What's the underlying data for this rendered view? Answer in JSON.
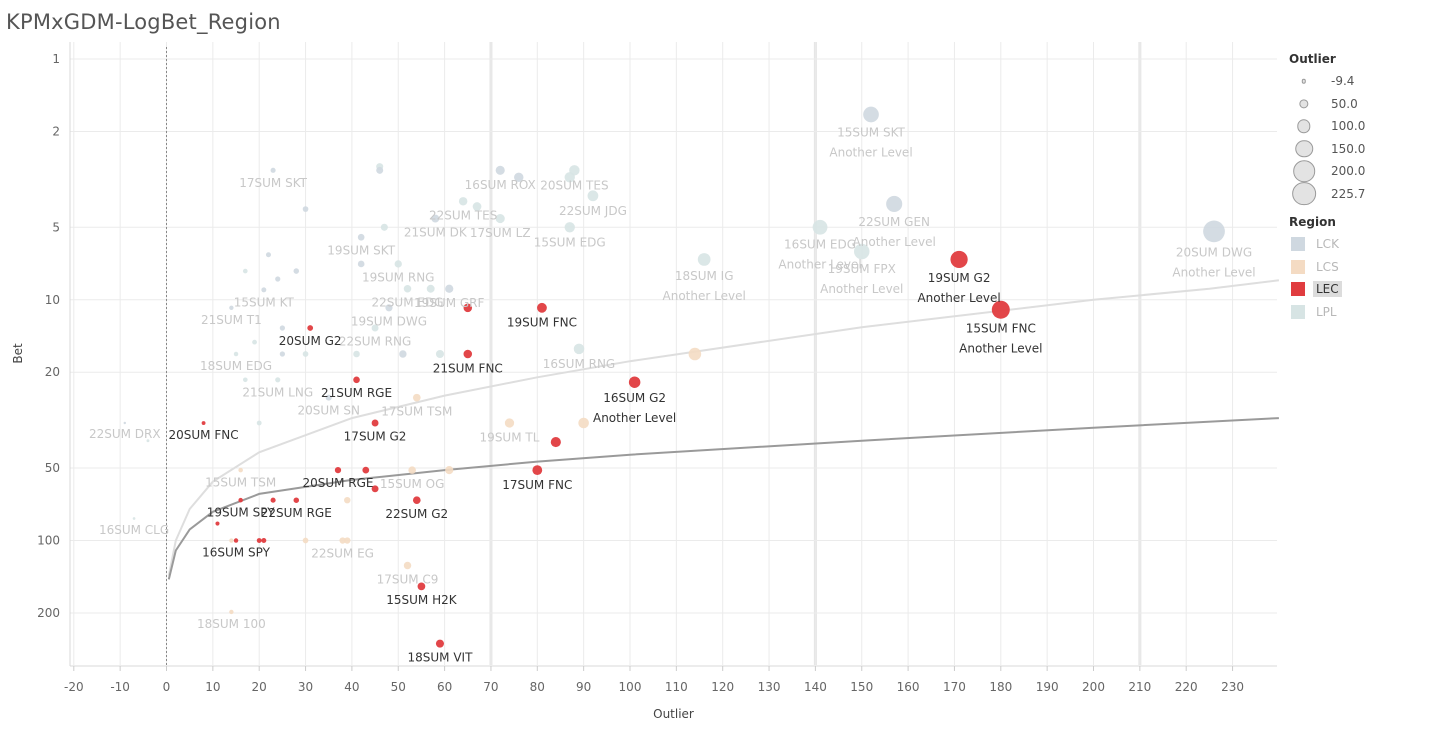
{
  "title": "KPMxGDM-LogBet_Region",
  "colors": {
    "LCK": "#cfd8e0",
    "LCS": "#f4dbc3",
    "LEC": "#e03c3f",
    "LPL": "#d7e4e4",
    "grid": "#ebebeb",
    "axis": "#666666",
    "fitLight": "#dedede",
    "fitDark": "#9a9a9a"
  },
  "legend": {
    "size_title": "Outlier",
    "size_items": [
      {
        "label": "-9.4",
        "value": -9.4
      },
      {
        "label": "50.0",
        "value": 50
      },
      {
        "label": "100.0",
        "value": 100
      },
      {
        "label": "150.0",
        "value": 150
      },
      {
        "label": "200.0",
        "value": 200
      },
      {
        "label": "225.7",
        "value": 225.7
      }
    ],
    "color_title": "Region",
    "color_items": [
      {
        "label": "LCK",
        "key": "LCK",
        "active": false
      },
      {
        "label": "LCS",
        "key": "LCS",
        "active": false
      },
      {
        "label": "LEC",
        "key": "LEC",
        "active": true
      },
      {
        "label": "LPL",
        "key": "LPL",
        "active": false
      }
    ]
  },
  "chart_data": {
    "type": "scatter",
    "title": "KPMxGDM-LogBet_Region",
    "xlabel": "Outlier",
    "ylabel": "Bet",
    "xlim": [
      -22,
      240
    ],
    "ylim": [
      1,
      350
    ],
    "yscale": "log",
    "y_reversed": true,
    "xticks": [
      -20,
      -10,
      0,
      10,
      20,
      30,
      40,
      50,
      60,
      70,
      80,
      90,
      100,
      110,
      120,
      130,
      140,
      150,
      160,
      170,
      180,
      190,
      200,
      210,
      220,
      230
    ],
    "yticks": [
      1,
      2,
      5,
      10,
      20,
      50,
      100,
      200
    ],
    "highlighted_region": "LEC",
    "fit_lines": [
      {
        "name": "trend-all",
        "color": "light",
        "points": [
          [
            0.5,
            140
          ],
          [
            2,
            100
          ],
          [
            5,
            74
          ],
          [
            10,
            57
          ],
          [
            20,
            43
          ],
          [
            40,
            31
          ],
          [
            60,
            25
          ],
          [
            80,
            21
          ],
          [
            100,
            18
          ],
          [
            150,
            13
          ],
          [
            200,
            10
          ],
          [
            225,
            9
          ],
          [
            240,
            8.3
          ]
        ]
      },
      {
        "name": "trend-lec",
        "color": "dark",
        "points": [
          [
            0.5,
            145
          ],
          [
            2,
            110
          ],
          [
            5,
            90
          ],
          [
            10,
            76
          ],
          [
            20,
            64
          ],
          [
            40,
            56
          ],
          [
            60,
            51
          ],
          [
            80,
            47
          ],
          [
            100,
            44
          ],
          [
            150,
            38.5
          ],
          [
            200,
            34
          ],
          [
            240,
            31
          ]
        ]
      }
    ],
    "points": [
      {
        "x": 152,
        "y": 1.7,
        "region": "LCK",
        "label": "15SUM SKT",
        "label2": "Another Level"
      },
      {
        "x": 157,
        "y": 4.0,
        "region": "LCK",
        "label": "22SUM GEN",
        "label2": "Another Level"
      },
      {
        "x": 141,
        "y": 5.0,
        "region": "LPL",
        "label": "16SUM EDG",
        "label2": "Another Level"
      },
      {
        "x": 226,
        "y": 5.2,
        "region": "LCK",
        "label": "20SUM DWG",
        "label2": "Another Level"
      },
      {
        "x": 150,
        "y": 6.3,
        "region": "LPL",
        "label": "19SUM FPX",
        "label2": "Another Level"
      },
      {
        "x": 171,
        "y": 6.8,
        "region": "LEC",
        "label": "19SUM G2",
        "label2": "Another Level"
      },
      {
        "x": 116,
        "y": 6.8,
        "region": "LPL",
        "label": "18SUM IG",
        "label2": "Another Level"
      },
      {
        "x": 180,
        "y": 11,
        "region": "LEC",
        "label": "15SUM FNC",
        "label2": "Another Level"
      },
      {
        "x": 101,
        "y": 22,
        "region": "LEC",
        "label": "16SUM G2",
        "label2": "Another Level"
      },
      {
        "x": 72,
        "y": 2.9,
        "region": "LCK",
        "label": "16SUM ROX",
        "label2": ""
      },
      {
        "x": 76,
        "y": 3.1,
        "region": "LCK",
        "label": "",
        "label2": ""
      },
      {
        "x": 88,
        "y": 2.9,
        "region": "LPL",
        "label": "20SUM TES",
        "label2": ""
      },
      {
        "x": 87,
        "y": 3.1,
        "region": "LPL",
        "label": "",
        "label2": ""
      },
      {
        "x": 23,
        "y": 2.9,
        "region": "LCK",
        "label": "17SUM SKT",
        "label2": ""
      },
      {
        "x": 46,
        "y": 2.8,
        "region": "LPL",
        "label": "",
        "label2": ""
      },
      {
        "x": 46,
        "y": 2.9,
        "region": "LCK",
        "label": "",
        "label2": ""
      },
      {
        "x": 64,
        "y": 3.9,
        "region": "LPL",
        "label": "22SUM TES",
        "label2": ""
      },
      {
        "x": 67,
        "y": 4.1,
        "region": "LPL",
        "label": "",
        "label2": ""
      },
      {
        "x": 92,
        "y": 3.7,
        "region": "LPL",
        "label": "22SUM JDG",
        "label2": ""
      },
      {
        "x": 72,
        "y": 4.6,
        "region": "LPL",
        "label": "17SUM LZ",
        "label2": ""
      },
      {
        "x": 58,
        "y": 4.6,
        "region": "LCK",
        "label": "21SUM DK",
        "label2": ""
      },
      {
        "x": 30,
        "y": 4.2,
        "region": "LCK",
        "label": "",
        "label2": ""
      },
      {
        "x": 47,
        "y": 5.0,
        "region": "LPL",
        "label": "",
        "label2": ""
      },
      {
        "x": 42,
        "y": 5.5,
        "region": "LCK",
        "label": "19SUM SKT",
        "label2": ""
      },
      {
        "x": 87,
        "y": 5.0,
        "region": "LPL",
        "label": "15SUM EDG",
        "label2": ""
      },
      {
        "x": 22,
        "y": 6.5,
        "region": "LCK",
        "label": "",
        "label2": ""
      },
      {
        "x": 42,
        "y": 7.1,
        "region": "LCK",
        "label": "",
        "label2": ""
      },
      {
        "x": 50,
        "y": 7.1,
        "region": "LPL",
        "label": "19SUM RNG",
        "label2": ""
      },
      {
        "x": 17,
        "y": 7.6,
        "region": "LPL",
        "label": "",
        "label2": ""
      },
      {
        "x": 28,
        "y": 7.6,
        "region": "LCK",
        "label": "",
        "label2": ""
      },
      {
        "x": 24,
        "y": 8.2,
        "region": "LCK",
        "label": "",
        "label2": ""
      },
      {
        "x": 21,
        "y": 9.1,
        "region": "LCK",
        "label": "15SUM KT",
        "label2": ""
      },
      {
        "x": 52,
        "y": 9.0,
        "region": "LPL",
        "label": "22SUM EDG",
        "label2": ""
      },
      {
        "x": 57,
        "y": 9.0,
        "region": "LPL",
        "label": "",
        "label2": ""
      },
      {
        "x": 61,
        "y": 9.0,
        "region": "LCK",
        "label": "19SUM GRF",
        "label2": ""
      },
      {
        "x": 14,
        "y": 10.8,
        "region": "LCK",
        "label": "21SUM T1",
        "label2": ""
      },
      {
        "x": 48,
        "y": 10.8,
        "region": "LCK",
        "label": "19SUM DWG",
        "label2": ""
      },
      {
        "x": 65,
        "y": 10.8,
        "region": "LEC",
        "label": "",
        "label2": ""
      },
      {
        "x": 81,
        "y": 10.8,
        "region": "LEC",
        "label": "19SUM FNC",
        "label2": ""
      },
      {
        "x": 25,
        "y": 13.1,
        "region": "LCK",
        "label": "",
        "label2": ""
      },
      {
        "x": 31,
        "y": 13.1,
        "region": "LEC",
        "label": "20SUM G2",
        "label2": ""
      },
      {
        "x": 45,
        "y": 13.1,
        "region": "LPL",
        "label": "22SUM RNG",
        "label2": ""
      },
      {
        "x": 19,
        "y": 15.0,
        "region": "LPL",
        "label": "",
        "label2": ""
      },
      {
        "x": 89,
        "y": 16.0,
        "region": "LPL",
        "label": "16SUM RNG",
        "label2": ""
      },
      {
        "x": 15,
        "y": 16.8,
        "region": "LPL",
        "label": "18SUM EDG",
        "label2": ""
      },
      {
        "x": 25,
        "y": 16.8,
        "region": "LCK",
        "label": "",
        "label2": ""
      },
      {
        "x": 30,
        "y": 16.8,
        "region": "LPL",
        "label": "",
        "label2": ""
      },
      {
        "x": 41,
        "y": 16.8,
        "region": "LPL",
        "label": "",
        "label2": ""
      },
      {
        "x": 51,
        "y": 16.8,
        "region": "LCK",
        "label": "",
        "label2": ""
      },
      {
        "x": 59,
        "y": 16.8,
        "region": "LPL",
        "label": "",
        "label2": ""
      },
      {
        "x": 65,
        "y": 16.8,
        "region": "LEC",
        "label": "21SUM FNC",
        "label2": ""
      },
      {
        "x": 114,
        "y": 16.8,
        "region": "LCS",
        "label": "",
        "label2": ""
      },
      {
        "x": 17,
        "y": 21.5,
        "region": "LPL",
        "label": "",
        "label2": ""
      },
      {
        "x": 24,
        "y": 21.5,
        "region": "LPL",
        "label": "21SUM LNG",
        "label2": ""
      },
      {
        "x": 41,
        "y": 21.5,
        "region": "LEC",
        "label": "21SUM RGE",
        "label2": ""
      },
      {
        "x": 54,
        "y": 25.5,
        "region": "LCS",
        "label": "17SUM TSM",
        "label2": ""
      },
      {
        "x": 35,
        "y": 25.5,
        "region": "LCK",
        "label": "20SUM SN",
        "label2": ""
      },
      {
        "x": 8,
        "y": 32.5,
        "region": "LEC",
        "label": "20SUM FNC",
        "label2": ""
      },
      {
        "x": 20,
        "y": 32.5,
        "region": "LPL",
        "label": "",
        "label2": ""
      },
      {
        "x": 45,
        "y": 32.5,
        "region": "LEC",
        "label": "17SUM G2",
        "label2": ""
      },
      {
        "x": 74,
        "y": 32.5,
        "region": "LCS",
        "label": "19SUM TL",
        "label2": ""
      },
      {
        "x": 90,
        "y": 32.5,
        "region": "LCS",
        "label": "",
        "label2": ""
      },
      {
        "x": 84,
        "y": 39,
        "region": "LEC",
        "label": "",
        "label2": ""
      },
      {
        "x": -9,
        "y": 32.5,
        "region": "LCK",
        "label": "22SUM DRX",
        "label2": ""
      },
      {
        "x": -4,
        "y": 38.5,
        "region": "LPL",
        "label": "",
        "label2": ""
      },
      {
        "x": 16,
        "y": 51,
        "region": "LCS",
        "label": "15SUM TSM",
        "label2": ""
      },
      {
        "x": 37,
        "y": 51,
        "region": "LEC",
        "label": "20SUM RGE",
        "label2": ""
      },
      {
        "x": 43,
        "y": 51,
        "region": "LEC",
        "label": "",
        "label2": ""
      },
      {
        "x": 53,
        "y": 51,
        "region": "LCS",
        "label": "15SUM OG",
        "label2": ""
      },
      {
        "x": 61,
        "y": 51,
        "region": "LCS",
        "label": "",
        "label2": ""
      },
      {
        "x": 80,
        "y": 51,
        "region": "LEC",
        "label": "17SUM FNC",
        "label2": ""
      },
      {
        "x": 45,
        "y": 61,
        "region": "LEC",
        "label": "",
        "label2": ""
      },
      {
        "x": 16,
        "y": 68,
        "region": "LEC",
        "label": "19SUM SPY",
        "label2": ""
      },
      {
        "x": 23,
        "y": 68,
        "region": "LEC",
        "label": "",
        "label2": ""
      },
      {
        "x": 28,
        "y": 68,
        "region": "LEC",
        "label": "22SUM RGE",
        "label2": ""
      },
      {
        "x": 39,
        "y": 68,
        "region": "LCS",
        "label": "",
        "label2": ""
      },
      {
        "x": 54,
        "y": 68,
        "region": "LEC",
        "label": "22SUM G2",
        "label2": ""
      },
      {
        "x": 11,
        "y": 85,
        "region": "LEC",
        "label": "",
        "label2": ""
      },
      {
        "x": -7,
        "y": 81,
        "region": "LPL",
        "label": "16SUM CLG",
        "label2": ""
      },
      {
        "x": 14,
        "y": 100,
        "region": "LCS",
        "label": "",
        "label2": ""
      },
      {
        "x": 15,
        "y": 100,
        "region": "LEC",
        "label": "16SUM SPY",
        "label2": ""
      },
      {
        "x": 20,
        "y": 100,
        "region": "LEC",
        "label": "",
        "label2": ""
      },
      {
        "x": 21,
        "y": 100,
        "region": "LEC",
        "label": "",
        "label2": ""
      },
      {
        "x": 30,
        "y": 100,
        "region": "LCS",
        "label": "",
        "label2": ""
      },
      {
        "x": 38,
        "y": 100,
        "region": "LCS",
        "label": "22SUM EG",
        "label2": ""
      },
      {
        "x": 39,
        "y": 100,
        "region": "LCS",
        "label": "",
        "label2": ""
      },
      {
        "x": 52,
        "y": 127,
        "region": "LCS",
        "label": "17SUM C9",
        "label2": ""
      },
      {
        "x": 55,
        "y": 155,
        "region": "LEC",
        "label": "15SUM H2K",
        "label2": ""
      },
      {
        "x": 14,
        "y": 198,
        "region": "LCS",
        "label": "18SUM 100",
        "label2": ""
      },
      {
        "x": 59,
        "y": 268,
        "region": "LEC",
        "label": "18SUM VIT",
        "label2": ""
      }
    ]
  }
}
